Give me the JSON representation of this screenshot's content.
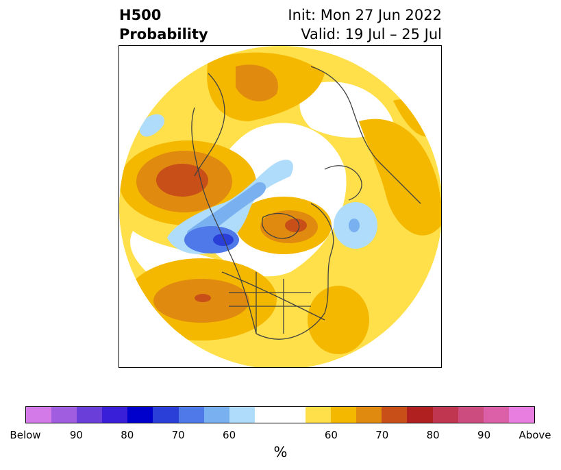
{
  "header": {
    "title_line1": "H500",
    "title_line2": "Probability",
    "init_label": "Init: Mon 27 Jun 2022",
    "valid_label": "Valid: 19 Jul – 25 Jul"
  },
  "colorbar": {
    "colors": [
      "#d47ae8",
      "#a05de0",
      "#6a3ed8",
      "#3a1fd8",
      "#0000cc",
      "#2a3fd8",
      "#4f78e8",
      "#78b0f0",
      "#aedcfa",
      "#ffffff",
      "#ffffff",
      "#ffe04a",
      "#f5b800",
      "#e08a10",
      "#c85018",
      "#b02020",
      "#c03550",
      "#cc4c80",
      "#dc60a8",
      "#e87ee0"
    ],
    "ticks": [
      "Below",
      "90",
      "80",
      "70",
      "60",
      "60",
      "70",
      "80",
      "90",
      "Above"
    ],
    "unit": "%"
  },
  "colors": {
    "light_yellow": "#ffe04a",
    "gold": "#f5b800",
    "orange": "#e08a10",
    "dark_orange": "#c85018",
    "red": "#b02020",
    "light_blue": "#aedcfa",
    "mid_blue": "#78b0f0",
    "blue": "#4f78e8",
    "dark_blue": "#2a3fd8",
    "coastline": "#404040"
  }
}
